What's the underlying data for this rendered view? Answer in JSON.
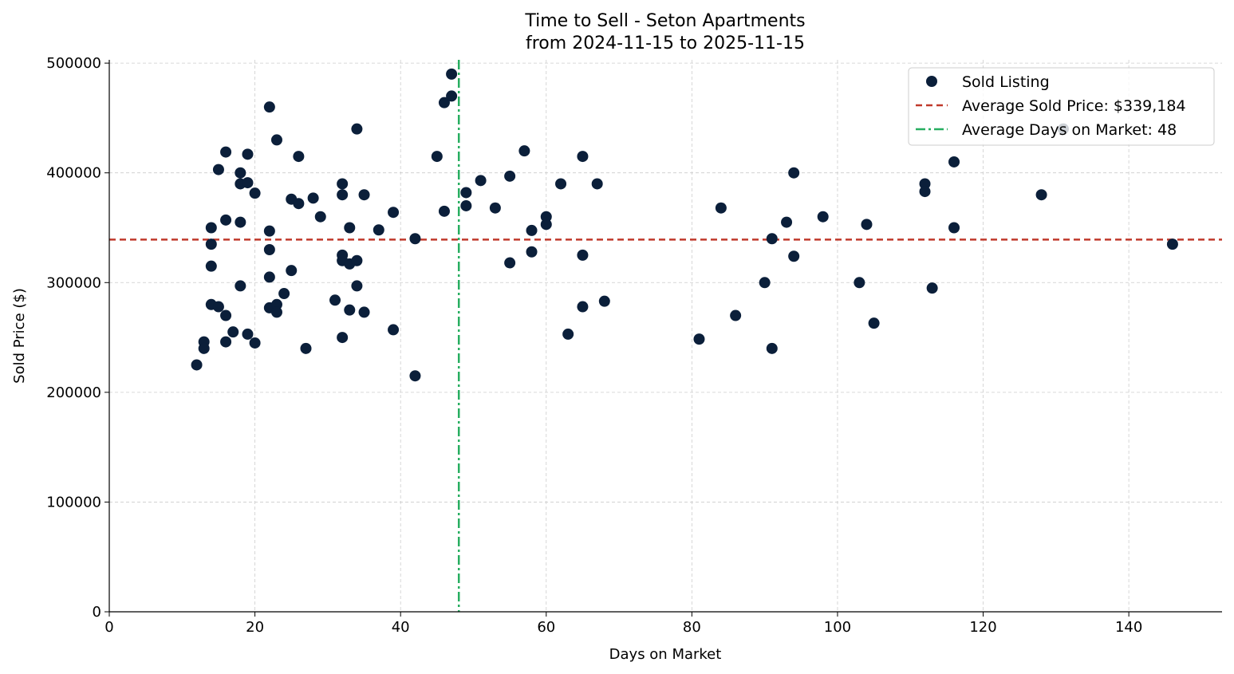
{
  "chart_data": {
    "type": "scatter",
    "title": "Time to Sell - Seton Apartments",
    "subtitle": "from 2024-11-15 to 2025-11-15",
    "xlabel": "Days on Market",
    "ylabel": "Sold Price ($)",
    "xlim": [
      0,
      152.8
    ],
    "ylim": [
      0,
      503000
    ],
    "xticks": [
      0,
      20,
      40,
      60,
      80,
      100,
      120,
      140
    ],
    "yticks": [
      0,
      100000,
      200000,
      300000,
      400000,
      500000
    ],
    "xtick_labels": [
      "0",
      "20",
      "40",
      "60",
      "80",
      "100",
      "120",
      "140"
    ],
    "ytick_labels": [
      "0",
      "100000",
      "200000",
      "300000",
      "400000",
      "500000"
    ],
    "grid": true,
    "legend_position": "top-right",
    "legend": [
      "Sold Listing",
      "Average Sold Price: $339,184",
      "Average Days on Market: 48"
    ],
    "colors": {
      "points": "#0b1f3a",
      "avg_price": "#c0392b",
      "avg_days": "#27ae60"
    },
    "avg_price": 339184,
    "avg_days": 48,
    "series": [
      {
        "name": "Sold Listing",
        "points": [
          [
            12,
            225000
          ],
          [
            13,
            246000
          ],
          [
            13,
            240000
          ],
          [
            14,
            350000
          ],
          [
            14,
            335000
          ],
          [
            14,
            315000
          ],
          [
            14,
            280000
          ],
          [
            15,
            403000
          ],
          [
            15,
            278000
          ],
          [
            16,
            419000
          ],
          [
            16,
            357000
          ],
          [
            16,
            270000
          ],
          [
            16,
            246000
          ],
          [
            17,
            255000
          ],
          [
            18,
            400000
          ],
          [
            18,
            390000
          ],
          [
            18,
            355000
          ],
          [
            18,
            297000
          ],
          [
            19,
            417000
          ],
          [
            19,
            391000
          ],
          [
            19,
            253000
          ],
          [
            20,
            381500
          ],
          [
            20,
            245000
          ],
          [
            22,
            460000
          ],
          [
            22,
            347000
          ],
          [
            22,
            330000
          ],
          [
            22,
            305000
          ],
          [
            22,
            277000
          ],
          [
            23,
            430000
          ],
          [
            23,
            280000
          ],
          [
            23,
            273000
          ],
          [
            24,
            290000
          ],
          [
            25,
            376000
          ],
          [
            25,
            311000
          ],
          [
            26,
            415000
          ],
          [
            26,
            372000
          ],
          [
            27,
            240000
          ],
          [
            28,
            377000
          ],
          [
            29,
            360000
          ],
          [
            31,
            284000
          ],
          [
            32,
            390000
          ],
          [
            32,
            380000
          ],
          [
            32,
            325000
          ],
          [
            32,
            320000
          ],
          [
            32,
            250000
          ],
          [
            33,
            350000
          ],
          [
            33,
            317000
          ],
          [
            33,
            275000
          ],
          [
            34,
            440000
          ],
          [
            34,
            320000
          ],
          [
            34,
            297000
          ],
          [
            35,
            380000
          ],
          [
            35,
            273000
          ],
          [
            37,
            348000
          ],
          [
            39,
            364000
          ],
          [
            39,
            257000
          ],
          [
            42,
            340000
          ],
          [
            42,
            215000
          ],
          [
            45,
            415000
          ],
          [
            46,
            464000
          ],
          [
            46,
            365000
          ],
          [
            47,
            490000
          ],
          [
            47,
            470000
          ],
          [
            49,
            382000
          ],
          [
            49,
            370000
          ],
          [
            51,
            393000
          ],
          [
            53,
            368000
          ],
          [
            55,
            397000
          ],
          [
            55,
            318000
          ],
          [
            57,
            420000
          ],
          [
            58,
            347500
          ],
          [
            58,
            328000
          ],
          [
            60,
            360000
          ],
          [
            60,
            353000
          ],
          [
            62,
            390000
          ],
          [
            63,
            253000
          ],
          [
            65,
            415000
          ],
          [
            65,
            325000
          ],
          [
            65,
            278000
          ],
          [
            67,
            390000
          ],
          [
            68,
            283000
          ],
          [
            81,
            248500
          ],
          [
            84,
            368000
          ],
          [
            86,
            270000
          ],
          [
            90,
            300000
          ],
          [
            91,
            340000
          ],
          [
            91,
            240000
          ],
          [
            93,
            355000
          ],
          [
            94,
            400000
          ],
          [
            94,
            324000
          ],
          [
            98,
            360000
          ],
          [
            103,
            300000
          ],
          [
            104,
            353000
          ],
          [
            105,
            263000
          ],
          [
            112,
            390000
          ],
          [
            112,
            383000
          ],
          [
            113,
            295000
          ],
          [
            116,
            410000
          ],
          [
            116,
            350000
          ],
          [
            128,
            380000
          ],
          [
            131,
            440000
          ],
          [
            146,
            335000
          ]
        ]
      }
    ]
  }
}
